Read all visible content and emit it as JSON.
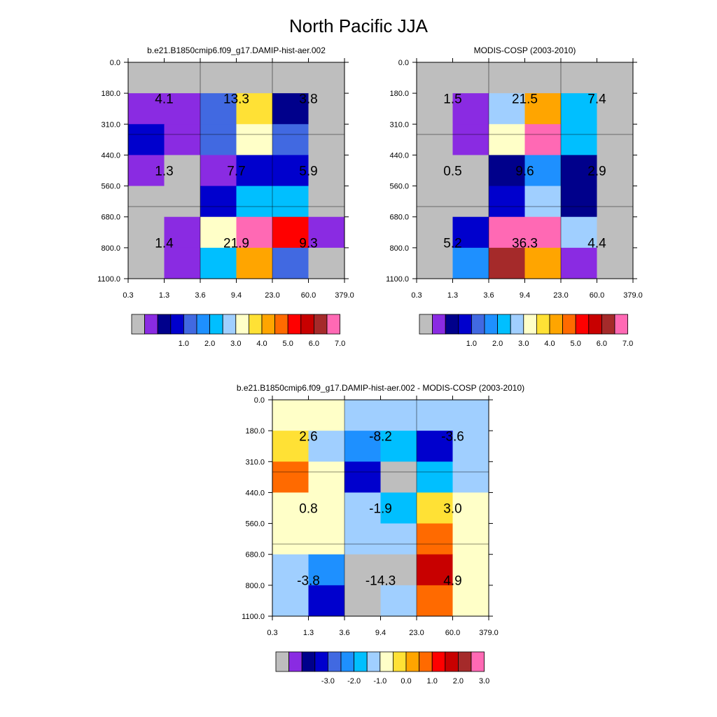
{
  "title": "North Pacific JJA",
  "palette": [
    "#bebebe",
    "#8a2be2",
    "#00008b",
    "#0000cd",
    "#4169e1",
    "#1e90ff",
    "#00bfff",
    "#a0cfff",
    "#ffffc8",
    "#ffe135",
    "#ffa500",
    "#ff6a00",
    "#ff0000",
    "#c80000",
    "#a52a2a",
    "#ff69b4"
  ],
  "chart_data": [
    {
      "type": "heatmap",
      "title": "b.e21.B1850cmip6.f09_g17.DAMIP-hist-aer.002",
      "x_ticks": [
        "0.3",
        "1.3",
        "3.6",
        "9.4",
        "23.0",
        "60.0",
        "379.0"
      ],
      "y_ticks": [
        "0.0",
        "180.0",
        "310.0",
        "440.0",
        "560.0",
        "680.0",
        "800.0",
        "1100.0"
      ],
      "cells": [
        [
          0,
          0,
          0,
          0,
          0,
          0
        ],
        [
          1,
          1,
          4,
          9,
          2,
          0
        ],
        [
          3,
          1,
          4,
          8,
          4,
          0
        ],
        [
          1,
          0,
          1,
          3,
          3,
          0
        ],
        [
          0,
          0,
          3,
          6,
          6,
          0
        ],
        [
          0,
          1,
          8,
          15,
          12,
          1
        ],
        [
          0,
          1,
          6,
          10,
          4,
          0
        ]
      ],
      "block_labels": [
        {
          "row": 0,
          "col": 0,
          "text": "4.1"
        },
        {
          "row": 0,
          "col": 1,
          "text": "13.3"
        },
        {
          "row": 0,
          "col": 2,
          "text": "3.8"
        },
        {
          "row": 1,
          "col": 0,
          "text": "1.3"
        },
        {
          "row": 1,
          "col": 1,
          "text": "7.7"
        },
        {
          "row": 1,
          "col": 2,
          "text": "5.9"
        },
        {
          "row": 2,
          "col": 0,
          "text": "1.4"
        },
        {
          "row": 2,
          "col": 1,
          "text": "21.9"
        },
        {
          "row": 2,
          "col": 2,
          "text": "9.3"
        }
      ],
      "colorbar_labels": [
        "1.0",
        "2.0",
        "3.0",
        "4.0",
        "5.0",
        "6.0",
        "7.0"
      ]
    },
    {
      "type": "heatmap",
      "title": "MODIS-COSP (2003-2010)",
      "x_ticks": [
        "0.3",
        "1.3",
        "3.6",
        "9.4",
        "23.0",
        "60.0",
        "379.0"
      ],
      "y_ticks": [
        "0.0",
        "180.0",
        "310.0",
        "440.0",
        "560.0",
        "680.0",
        "800.0",
        "1100.0"
      ],
      "cells": [
        [
          0,
          0,
          0,
          0,
          0,
          0
        ],
        [
          0,
          1,
          7,
          10,
          6,
          0
        ],
        [
          0,
          1,
          8,
          15,
          6,
          0
        ],
        [
          0,
          0,
          2,
          5,
          2,
          0
        ],
        [
          0,
          0,
          3,
          7,
          2,
          0
        ],
        [
          0,
          3,
          15,
          15,
          7,
          0
        ],
        [
          0,
          5,
          14,
          10,
          1,
          0
        ]
      ],
      "block_labels": [
        {
          "row": 0,
          "col": 0,
          "text": "1.5"
        },
        {
          "row": 0,
          "col": 1,
          "text": "21.5"
        },
        {
          "row": 0,
          "col": 2,
          "text": "7.4"
        },
        {
          "row": 1,
          "col": 0,
          "text": "0.5"
        },
        {
          "row": 1,
          "col": 1,
          "text": "9.6"
        },
        {
          "row": 1,
          "col": 2,
          "text": "2.9"
        },
        {
          "row": 2,
          "col": 0,
          "text": "5.2"
        },
        {
          "row": 2,
          "col": 1,
          "text": "36.3"
        },
        {
          "row": 2,
          "col": 2,
          "text": "4.4"
        }
      ],
      "colorbar_labels": [
        "1.0",
        "2.0",
        "3.0",
        "4.0",
        "5.0",
        "6.0",
        "7.0"
      ]
    },
    {
      "type": "heatmap",
      "title": "b.e21.B1850cmip6.f09_g17.DAMIP-hist-aer.002 - MODIS-COSP (2003-2010)",
      "x_ticks": [
        "0.3",
        "1.3",
        "3.6",
        "9.4",
        "23.0",
        "60.0",
        "379.0"
      ],
      "y_ticks": [
        "0.0",
        "180.0",
        "310.0",
        "440.0",
        "560.0",
        "680.0",
        "800.0",
        "1100.0"
      ],
      "cells": [
        [
          8,
          8,
          7,
          7,
          7,
          7
        ],
        [
          9,
          7,
          5,
          6,
          3,
          7
        ],
        [
          11,
          8,
          3,
          0,
          6,
          7
        ],
        [
          8,
          8,
          7,
          6,
          9,
          8
        ],
        [
          8,
          8,
          7,
          7,
          11,
          8
        ],
        [
          7,
          5,
          0,
          0,
          13,
          8
        ],
        [
          7,
          3,
          0,
          7,
          11,
          8
        ]
      ],
      "block_labels": [
        {
          "row": 0,
          "col": 0,
          "text": "2.6"
        },
        {
          "row": 0,
          "col": 1,
          "text": "-8.2"
        },
        {
          "row": 0,
          "col": 2,
          "text": "-3.6"
        },
        {
          "row": 1,
          "col": 0,
          "text": "0.8"
        },
        {
          "row": 1,
          "col": 1,
          "text": "-1.9"
        },
        {
          "row": 1,
          "col": 2,
          "text": "3.0"
        },
        {
          "row": 2,
          "col": 0,
          "text": "-3.8"
        },
        {
          "row": 2,
          "col": 1,
          "text": "-14.3"
        },
        {
          "row": 2,
          "col": 2,
          "text": "4.9"
        }
      ],
      "colorbar_labels": [
        "-3.0",
        "-2.0",
        "-1.0",
        "0.0",
        "1.0",
        "2.0",
        "3.0"
      ]
    }
  ]
}
